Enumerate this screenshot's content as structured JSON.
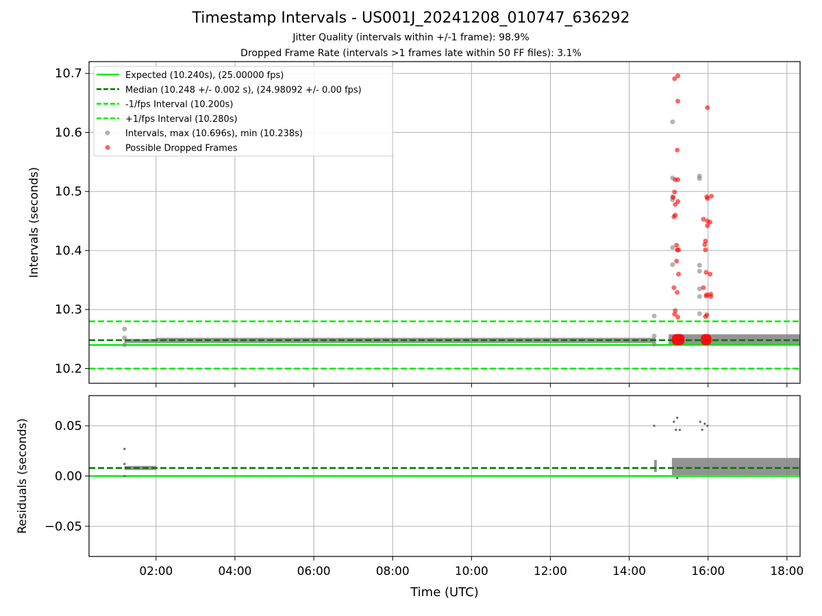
{
  "figure": {
    "title": "Timestamp Intervals - US001J_20241208_010747_636292",
    "subtitle_jitter": "Jitter Quality (intervals within +/-1 frame): 98.9%",
    "subtitle_dropped": "Dropped Frame Rate (intervals >1 frames late within 50 FF files): 3.1%"
  },
  "colors": {
    "expected": "#00ee00",
    "median": "#007700",
    "fps_band": "#00ee00",
    "intervals": "#808080",
    "dropped": "#ff0000",
    "grid": "#b0b0b0"
  },
  "chart_data": [
    {
      "type": "scatter",
      "name": "intervals",
      "xlabel": "",
      "ylabel": "Intervals (seconds)",
      "xlim": [
        "00:18",
        "18:20"
      ],
      "ylim": [
        10.175,
        10.72
      ],
      "yticks": [
        "10.2",
        "10.3",
        "10.4",
        "10.5",
        "10.6",
        "10.7"
      ],
      "grid": true,
      "legend_position": "top-left",
      "legend": [
        {
          "label": "Expected (10.240s), (25.00000 fps)",
          "style": "solid",
          "color": "#00ee00"
        },
        {
          "label": "Median (10.248 +/- 0.002 s), (24.98092 +/- 0.00 fps)",
          "style": "dashed",
          "color": "#007700"
        },
        {
          "label": "-1/fps Interval (10.200s)",
          "style": "dashed",
          "color": "#00ee00"
        },
        {
          "label": "+1/fps Interval (10.280s)",
          "style": "dashed",
          "color": "#00ee00"
        },
        {
          "label": "Intervals, max (10.696s), min (10.238s)",
          "style": "marker",
          "color": "#808080"
        },
        {
          "label": "Possible Dropped Frames",
          "style": "marker",
          "color": "#ff0000"
        }
      ],
      "hlines": {
        "expected": 10.24,
        "median": 10.248,
        "minus_fps": 10.2,
        "plus_fps": 10.28
      },
      "intervals_band": [
        {
          "x_start": "01:12",
          "x_end": "02:00",
          "y_low": 10.243,
          "y_high": 10.25
        },
        {
          "x_start": "02:00",
          "x_end": "14:40",
          "y_low": 10.243,
          "y_high": 10.252
        },
        {
          "x_start": "15:00",
          "x_end": "18:20",
          "y_low": 10.24,
          "y_high": 10.258
        }
      ],
      "intervals_points": [
        {
          "x": "01:12",
          "y": 10.267
        },
        {
          "x": "01:12",
          "y": 10.252
        },
        {
          "x": "01:12",
          "y": 10.24
        },
        {
          "x": "14:38",
          "y": 10.289
        },
        {
          "x": "14:38",
          "y": 10.255
        },
        {
          "x": "14:38",
          "y": 10.241
        },
        {
          "x": "15:06",
          "y": 10.618
        },
        {
          "x": "15:06",
          "y": 10.523
        },
        {
          "x": "15:06",
          "y": 10.491
        },
        {
          "x": "15:06",
          "y": 10.486
        },
        {
          "x": "15:06",
          "y": 10.405
        },
        {
          "x": "15:06",
          "y": 10.376
        },
        {
          "x": "15:47",
          "y": 10.526
        },
        {
          "x": "15:47",
          "y": 10.522
        },
        {
          "x": "15:47",
          "y": 10.375
        },
        {
          "x": "15:47",
          "y": 10.365
        },
        {
          "x": "15:47",
          "y": 10.335
        },
        {
          "x": "15:47",
          "y": 10.322
        },
        {
          "x": "15:47",
          "y": 10.293
        }
      ],
      "dropped_points": [
        {
          "x": "15:09",
          "y": 10.691
        },
        {
          "x": "15:14",
          "y": 10.696
        },
        {
          "x": "15:14",
          "y": 10.653
        },
        {
          "x": "15:13",
          "y": 10.57
        },
        {
          "x": "15:10",
          "y": 10.52
        },
        {
          "x": "15:14",
          "y": 10.52
        },
        {
          "x": "15:09",
          "y": 10.499
        },
        {
          "x": "15:07",
          "y": 10.49
        },
        {
          "x": "15:14",
          "y": 10.483
        },
        {
          "x": "15:10",
          "y": 10.478
        },
        {
          "x": "15:10",
          "y": 10.46
        },
        {
          "x": "15:08",
          "y": 10.457
        },
        {
          "x": "15:12",
          "y": 10.409
        },
        {
          "x": "15:13",
          "y": 10.401
        },
        {
          "x": "15:15",
          "y": 10.401
        },
        {
          "x": "15:12",
          "y": 10.382
        },
        {
          "x": "15:15",
          "y": 10.36
        },
        {
          "x": "15:08",
          "y": 10.337
        },
        {
          "x": "15:13",
          "y": 10.329
        },
        {
          "x": "15:10",
          "y": 10.298
        },
        {
          "x": "15:09",
          "y": 10.292
        },
        {
          "x": "15:14",
          "y": 10.287
        },
        {
          "x": "15:59",
          "y": 10.642
        },
        {
          "x": "15:58",
          "y": 10.491
        },
        {
          "x": "15:59",
          "y": 10.488
        },
        {
          "x": "16:05",
          "y": 10.492
        },
        {
          "x": "15:53",
          "y": 10.453
        },
        {
          "x": "15:59",
          "y": 10.45
        },
        {
          "x": "16:03",
          "y": 10.448
        },
        {
          "x": "15:59",
          "y": 10.442
        },
        {
          "x": "15:56",
          "y": 10.416
        },
        {
          "x": "15:55",
          "y": 10.41
        },
        {
          "x": "15:56",
          "y": 10.401
        },
        {
          "x": "15:57",
          "y": 10.363
        },
        {
          "x": "16:03",
          "y": 10.36
        },
        {
          "x": "15:53",
          "y": 10.337
        },
        {
          "x": "15:58",
          "y": 10.325
        },
        {
          "x": "15:57",
          "y": 10.323
        },
        {
          "x": "16:04",
          "y": 10.326
        },
        {
          "x": "16:04",
          "y": 10.322
        },
        {
          "x": "15:58",
          "y": 10.291
        },
        {
          "x": "15:56",
          "y": 10.288
        }
      ],
      "dropped_clusters": [
        {
          "x_start": "15:05",
          "x_end": "15:24",
          "y": 10.249
        },
        {
          "x_start": "15:49",
          "x_end": "16:05",
          "y": 10.249
        }
      ]
    },
    {
      "type": "scatter",
      "name": "residuals",
      "xlabel": "Time (UTC)",
      "ylabel": "Residuals (seconds)",
      "xlim": [
        "00:18",
        "18:20"
      ],
      "ylim": [
        -0.08,
        0.08
      ],
      "yticks": [
        "−0.05",
        "0.00",
        "0.05"
      ],
      "xticks": [
        "02:00",
        "04:00",
        "06:00",
        "08:00",
        "10:00",
        "12:00",
        "14:00",
        "16:00",
        "18:00"
      ],
      "grid": true,
      "hlines": {
        "zero": 0.0,
        "median": 0.008
      },
      "residual_band": [
        {
          "x_start": "01:12",
          "x_end": "02:00",
          "y_low": 0.006,
          "y_high": 0.01
        },
        {
          "x_start": "14:38",
          "x_end": "14:42",
          "y_low": 0.004,
          "y_high": 0.016
        },
        {
          "x_start": "15:05",
          "x_end": "18:20",
          "y_low": 0.001,
          "y_high": 0.018
        }
      ],
      "residual_points": [
        {
          "x": "01:12",
          "y": 0.027
        },
        {
          "x": "01:12",
          "y": 0.012
        },
        {
          "x": "01:12",
          "y": 0.0
        },
        {
          "x": "14:38",
          "y": 0.05
        },
        {
          "x": "15:08",
          "y": 0.054
        },
        {
          "x": "15:13",
          "y": 0.058
        },
        {
          "x": "15:11",
          "y": 0.046
        },
        {
          "x": "15:17",
          "y": 0.046
        },
        {
          "x": "15:48",
          "y": 0.054
        },
        {
          "x": "15:51",
          "y": 0.046
        },
        {
          "x": "15:55",
          "y": 0.052
        },
        {
          "x": "15:59",
          "y": 0.05
        },
        {
          "x": "15:13",
          "y": -0.002
        }
      ]
    }
  ]
}
